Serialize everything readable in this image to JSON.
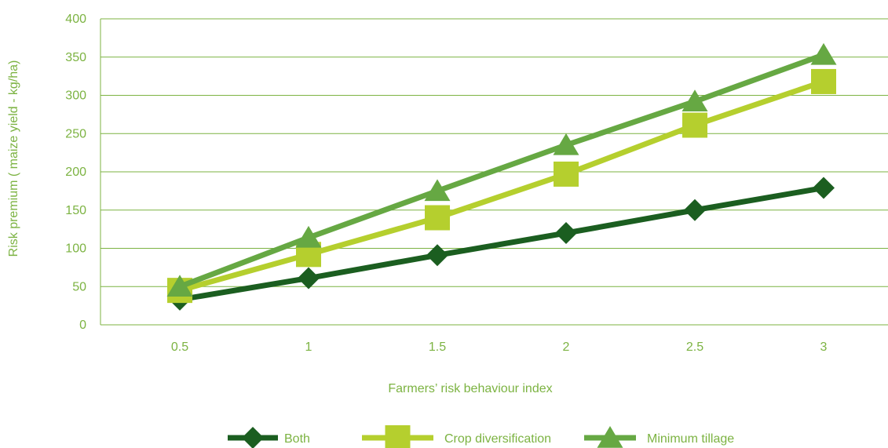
{
  "chart_data": {
    "type": "line",
    "title": "",
    "xlabel": "Farmers’ risk behaviour index",
    "ylabel": "Risk premium ( maize yield - kg/ha)",
    "x": [
      0.5,
      1,
      1.5,
      2,
      2.5,
      3
    ],
    "x_tick_labels": [
      "0.5",
      "1",
      "1.5",
      "2",
      "2.5",
      "3"
    ],
    "ylim": [
      0,
      400
    ],
    "y_ticks": [
      0,
      50,
      100,
      150,
      200,
      250,
      300,
      350,
      400
    ],
    "grid": "horizontal",
    "legend_position": "bottom",
    "series": [
      {
        "name": "Both",
        "marker": "diamond",
        "color": "#1b5e20",
        "values": [
          33,
          61,
          91,
          120,
          150,
          179
        ]
      },
      {
        "name": "Crop diversification",
        "marker": "square",
        "color": "#b5cf2e",
        "values": [
          45,
          92,
          140,
          197,
          261,
          318
        ]
      },
      {
        "name": "Minimum tillage",
        "marker": "triangle",
        "color": "#66a843",
        "values": [
          50,
          114,
          175,
          235,
          292,
          353
        ]
      }
    ]
  },
  "colors": {
    "axis_text": "#7cb342",
    "grid": "#7cb342"
  }
}
